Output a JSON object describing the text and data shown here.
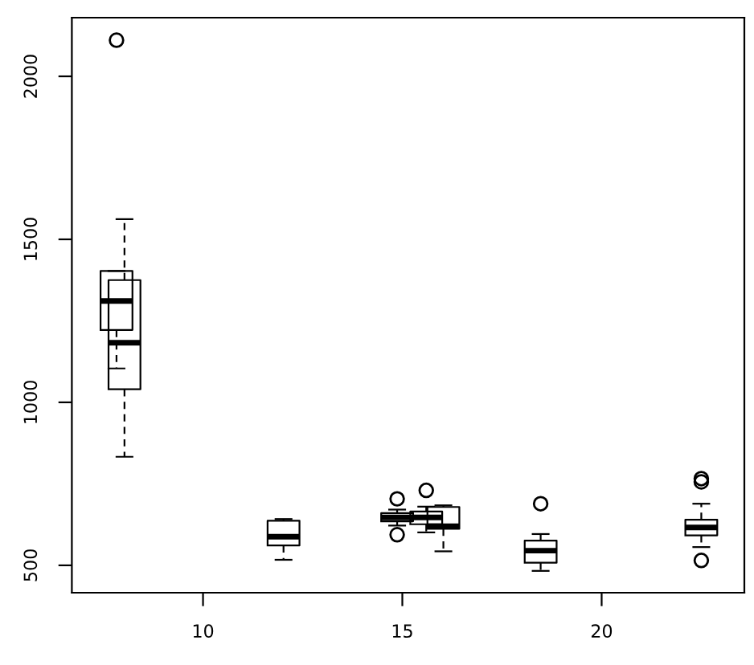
{
  "chart_data": {
    "type": "box",
    "x": [
      7.83,
      8.03,
      12.02,
      14.87,
      15.6,
      16.03,
      18.47,
      22.5
    ],
    "boxes": [
      {
        "low": 1104,
        "q1": 1222,
        "median": 1311,
        "q3": 1403,
        "high": 1403,
        "outliers": [
          2111
        ]
      },
      {
        "low": 833,
        "q1": 1040,
        "median": 1183,
        "q3": 1375,
        "high": 1562
      },
      {
        "low": 517,
        "q1": 561,
        "median": 588,
        "q3": 637,
        "high": 642
      },
      {
        "low": 622,
        "q1": 635,
        "median": 647,
        "q3": 660,
        "high": 671,
        "outliers": [
          704,
          594
        ]
      },
      {
        "low": 601,
        "q1": 626,
        "median": 647,
        "q3": 665,
        "high": 680,
        "outliers": [
          730
        ]
      },
      {
        "low": 543,
        "q1": 612,
        "median": 620,
        "q3": 679,
        "high": 684
      },
      {
        "low": 483,
        "q1": 508,
        "median": 545,
        "q3": 576,
        "high": 596,
        "outliers": [
          689
        ]
      },
      {
        "low": 556,
        "q1": 592,
        "median": 616,
        "q3": 640,
        "high": 689,
        "outliers": [
          515,
          766,
          756
        ]
      }
    ],
    "xlim": [
      6.71,
      23.58
    ],
    "ylim": [
      416,
      2180
    ],
    "xticks": [
      10,
      15,
      20
    ],
    "yticks": [
      500,
      1000,
      1500,
      2000
    ],
    "grid": false
  }
}
